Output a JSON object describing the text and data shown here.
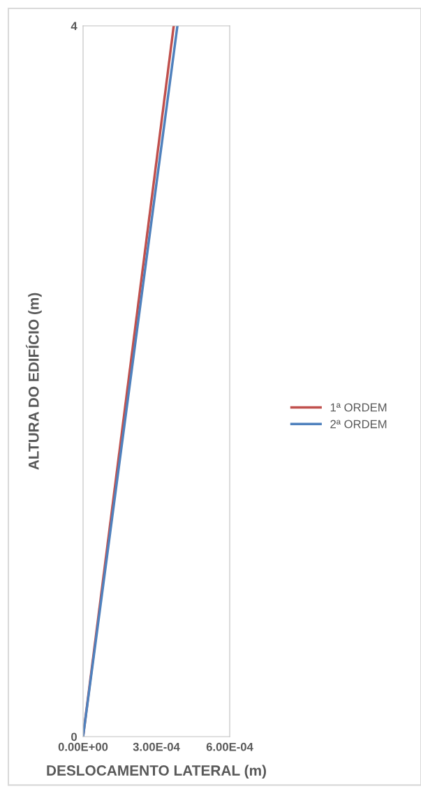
{
  "chart_data": {
    "type": "line",
    "xlabel": "DESLOCAMENTO LATERAL (m)",
    "ylabel": "ALTURA DO EDIFÍCIO (m)",
    "series": [
      {
        "name": "1ª ORDEM",
        "color": "#c0504d",
        "x": [
          0,
          0.000371
        ],
        "values": [
          0,
          4
        ]
      },
      {
        "name": "2ª ORDEM",
        "color": "#4f81bd",
        "x": [
          0,
          0.000386
        ],
        "values": [
          0,
          4
        ]
      }
    ],
    "xlim": [
      0,
      0.0006
    ],
    "xticks": [
      {
        "value": 0,
        "label": "0.00E+00"
      },
      {
        "value": 0.0003,
        "label": "3.00E-04"
      },
      {
        "value": 0.0006,
        "label": "6.00E-04"
      }
    ],
    "ylim": [
      0,
      4
    ],
    "yticks": [
      0,
      4
    ],
    "grid": false,
    "legend": "right",
    "marker": "none",
    "line_style": "solid"
  }
}
